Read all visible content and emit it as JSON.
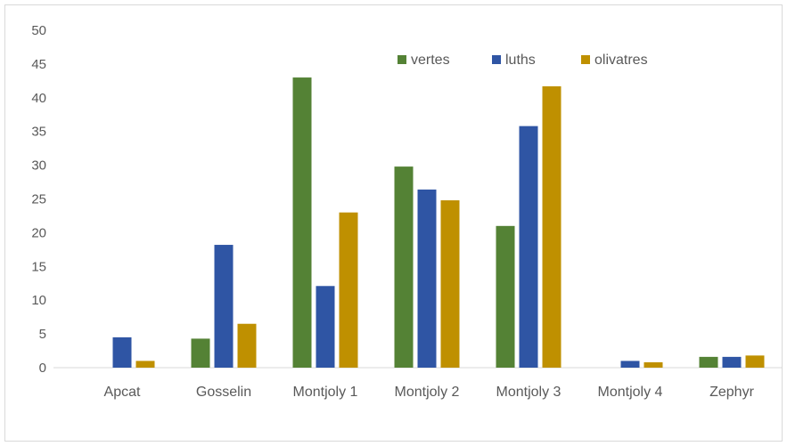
{
  "chart_data": {
    "type": "bar",
    "categories": [
      "Apcat",
      "Gosselin",
      "Montjoly 1",
      "Montjoly 2",
      "Montjoly 3",
      "Montjoly 4",
      "Zephyr"
    ],
    "series": [
      {
        "name": "vertes",
        "color": "#548235",
        "values": [
          0,
          4.3,
          43,
          29.8,
          21,
          0,
          1.6
        ]
      },
      {
        "name": "luths",
        "color": "#2f55a4",
        "values": [
          4.5,
          18.2,
          12.1,
          26.4,
          35.8,
          1,
          1.6
        ]
      },
      {
        "name": "olivatres",
        "color": "#bf9000",
        "values": [
          1,
          6.5,
          23,
          24.8,
          41.7,
          0.8,
          1.8
        ]
      }
    ],
    "ylim": [
      0,
      50
    ],
    "yticks": [
      0,
      5,
      10,
      15,
      20,
      25,
      30,
      35,
      40,
      45,
      50
    ],
    "title": "",
    "xlabel": "",
    "ylabel": "",
    "grid": false,
    "legend_position": "top-right"
  }
}
